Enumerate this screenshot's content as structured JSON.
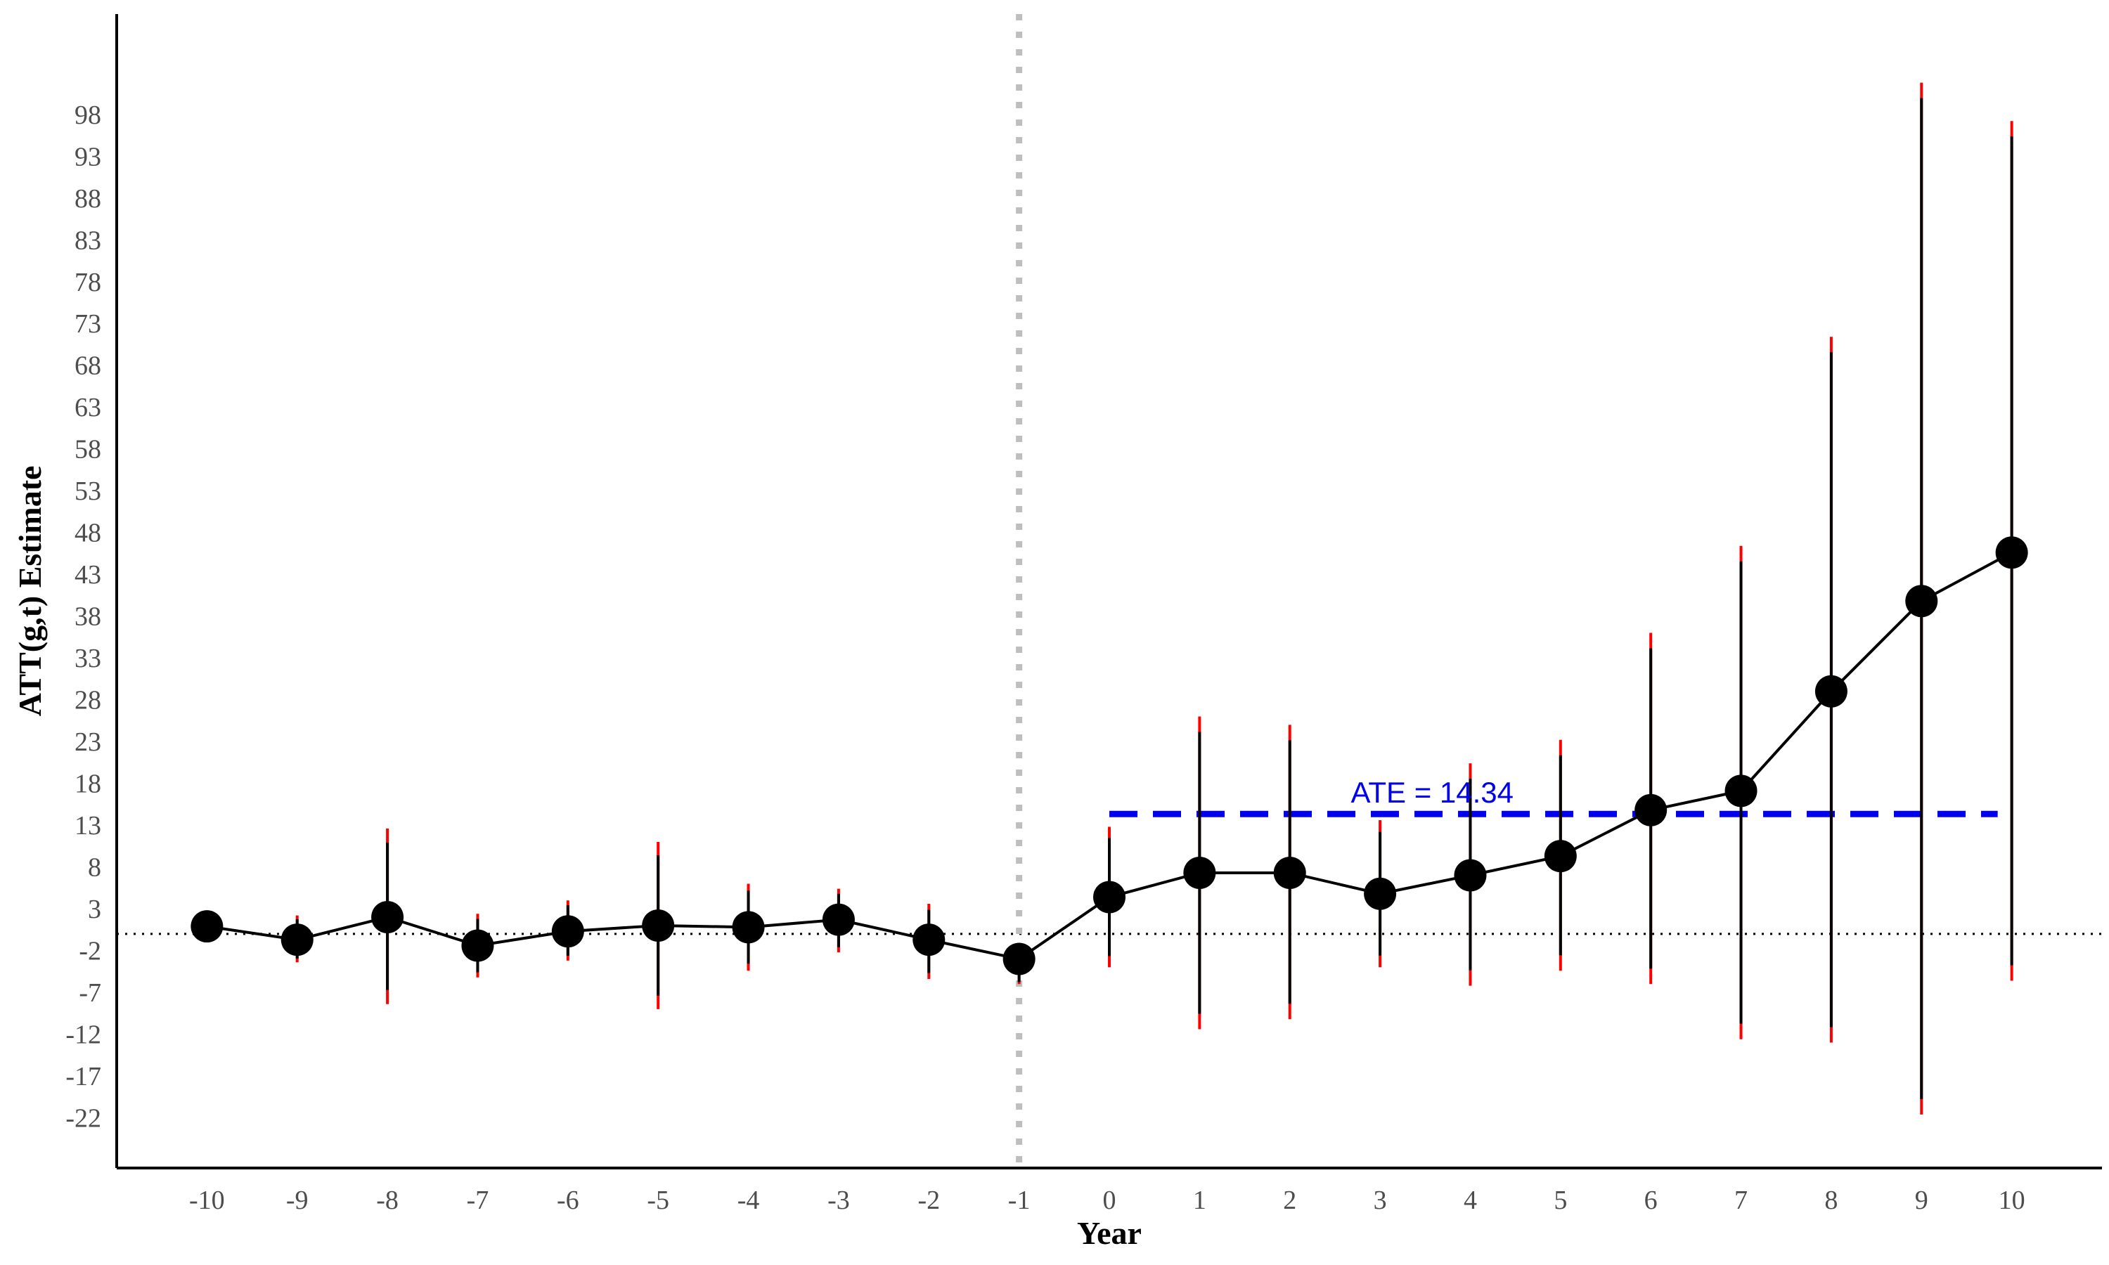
{
  "chart_data": {
    "type": "line",
    "xlabel": "Year",
    "ylabel": "ATT(g,t) Estimate",
    "xlim": [
      -11,
      11
    ],
    "ylim": [
      -28,
      110
    ],
    "x_ticks": [
      -10,
      -9,
      -8,
      -7,
      -6,
      -5,
      -4,
      -3,
      -2,
      -1,
      0,
      1,
      2,
      3,
      4,
      5,
      6,
      7,
      8,
      9,
      10
    ],
    "y_ticks": [
      98,
      93,
      88,
      83,
      78,
      73,
      68,
      63,
      58,
      53,
      48,
      43,
      38,
      33,
      28,
      23,
      18,
      13,
      8,
      3,
      -2,
      -7,
      -12,
      -17,
      -22
    ],
    "treatment_line_x": -1,
    "reference_line_y": 0,
    "grid": false,
    "series": [
      {
        "x": [
          -10,
          -9,
          -8,
          -7,
          -6,
          -5,
          -4,
          -3,
          -2,
          -1,
          0,
          1,
          2,
          3,
          4,
          5,
          6,
          7,
          8,
          9,
          10
        ],
        "y": [
          0.9,
          -0.7,
          2.0,
          -1.4,
          0.3,
          1.0,
          0.8,
          1.7,
          -0.7,
          -3.0,
          4.4,
          7.3,
          7.3,
          4.8,
          7.0,
          9.3,
          14.8,
          17.1,
          29.0,
          39.8,
          45.6
        ],
        "ci_lower": [
          0.9,
          -3.4,
          -8.4,
          -5.2,
          -3.2,
          -9.0,
          -4.4,
          -2.2,
          -5.4,
          -6.0,
          -4.0,
          -11.4,
          -10.2,
          -4.0,
          -6.2,
          -4.4,
          -6.0,
          -12.6,
          -13.0,
          -21.6,
          -5.6
        ],
        "ci_upper": [
          0.9,
          2.2,
          12.6,
          2.4,
          4.0,
          11.0,
          6.0,
          5.4,
          3.6,
          -3.0,
          12.8,
          26.0,
          25.0,
          13.6,
          20.4,
          23.2,
          36.0,
          46.4,
          71.4,
          101.8,
          97.2
        ]
      }
    ],
    "ate": {
      "label": "ATE = 14.34",
      "value": 14.34,
      "x_start": 0,
      "x_end": 10,
      "color": "#0000ee"
    },
    "colors": {
      "points": "#000000",
      "ci": "#000000",
      "ci_tips": "#ff0000",
      "treatment_line": "#bebebe"
    }
  }
}
